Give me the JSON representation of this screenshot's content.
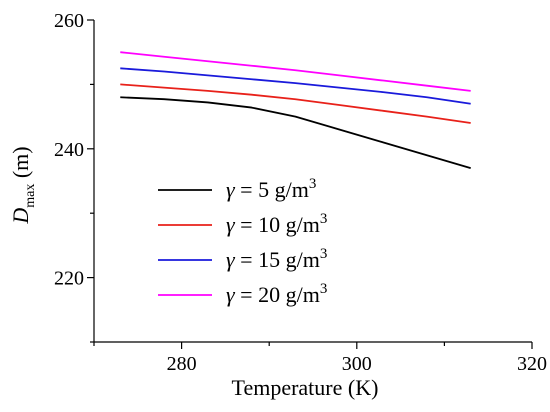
{
  "chart_data": {
    "type": "line",
    "xlabel": "Temperature (K)",
    "ylabel": {
      "symbol": "D",
      "subscript": "max",
      "unit": " (m)"
    },
    "xlim": [
      270,
      320
    ],
    "ylim": [
      210,
      260
    ],
    "xticks": [
      280,
      300,
      320
    ],
    "yticks": [
      220,
      240,
      260
    ],
    "x": [
      273,
      278,
      283,
      288,
      293,
      298,
      303,
      308,
      313
    ],
    "series": [
      {
        "name": "γ = 5 g/m³",
        "sym": "γ",
        "label": " = 5 g/m",
        "sup": "3",
        "color": "#000000",
        "values": [
          248.0,
          247.7,
          247.2,
          246.4,
          245.0,
          243.0,
          241.0,
          239.0,
          237.0
        ]
      },
      {
        "name": "γ = 10 g/m³",
        "sym": "γ",
        "label": " = 10 g/m",
        "sup": "3",
        "color": "#e8211a",
        "values": [
          250.0,
          249.5,
          249.0,
          248.4,
          247.7,
          246.8,
          245.9,
          245.0,
          244.0
        ]
      },
      {
        "name": "γ = 15 g/m³",
        "sym": "γ",
        "label": " = 15 g/m",
        "sup": "3",
        "color": "#1a1adb",
        "values": [
          252.5,
          252.0,
          251.4,
          250.8,
          250.2,
          249.5,
          248.8,
          248.0,
          247.0
        ]
      },
      {
        "name": "γ = 20 g/m³",
        "sym": "γ",
        "label": " = 20 g/m",
        "sup": "3",
        "color": "#ff00ff",
        "values": [
          255.0,
          254.3,
          253.6,
          252.9,
          252.2,
          251.4,
          250.6,
          249.8,
          249.0
        ]
      }
    ],
    "legend": "lower-left",
    "grid": false
  }
}
